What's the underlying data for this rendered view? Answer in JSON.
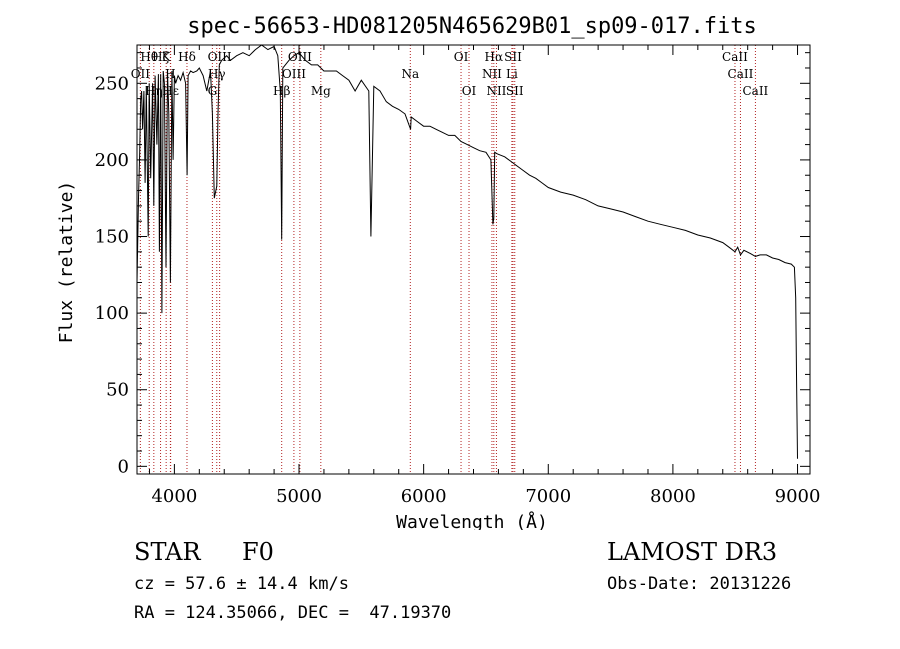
{
  "chart_data": {
    "type": "line",
    "title": "spec-56653-HD081205N465629B01_sp09-017.fits",
    "xlabel": "Wavelength (Å)",
    "ylabel": "Flux (relative)",
    "xlim": [
      3700,
      9100
    ],
    "ylim": [
      -5,
      275
    ],
    "xticks": [
      4000,
      5000,
      6000,
      7000,
      8000,
      9000
    ],
    "xtick_labels": [
      "4000",
      "5000",
      "6000",
      "7000",
      "8000",
      "9000"
    ],
    "yticks": [
      0,
      50,
      100,
      150,
      200,
      250
    ],
    "ytick_labels": [
      "0",
      "50",
      "100",
      "150",
      "200",
      "250"
    ],
    "series": [
      {
        "name": "spectrum",
        "x": [
          3700,
          3712,
          3722,
          3730,
          3737,
          3745,
          3755,
          3765,
          3775,
          3790,
          3798,
          3810,
          3825,
          3835,
          3845,
          3860,
          3872,
          3880,
          3890,
          3900,
          3910,
          3920,
          3933,
          3945,
          3955,
          3968,
          3980,
          3990,
          4000,
          4010,
          4030,
          4050,
          4070,
          4090,
          4102,
          4110,
          4130,
          4150,
          4180,
          4200,
          4230,
          4260,
          4290,
          4305,
          4320,
          4340,
          4350,
          4360,
          4380,
          4420,
          4450,
          4500,
          4550,
          4600,
          4650,
          4700,
          4750,
          4800,
          4830,
          4850,
          4861,
          4870,
          4890,
          4920,
          4960,
          5000,
          5050,
          5100,
          5150,
          5200,
          5250,
          5300,
          5350,
          5400,
          5450,
          5500,
          5560,
          5577,
          5600,
          5650,
          5700,
          5750,
          5800,
          5850,
          5895,
          5900,
          5950,
          6000,
          6050,
          6100,
          6150,
          6200,
          6250,
          6300,
          6350,
          6400,
          6450,
          6500,
          6540,
          6556,
          6563,
          6570,
          6590,
          6620,
          6650,
          6700,
          6750,
          6800,
          6850,
          6900,
          6950,
          7000,
          7100,
          7200,
          7300,
          7400,
          7500,
          7600,
          7700,
          7800,
          7900,
          8000,
          8100,
          8200,
          8300,
          8400,
          8450,
          8498,
          8520,
          8542,
          8570,
          8620,
          8662,
          8700,
          8750,
          8800,
          8850,
          8900,
          8950,
          8975,
          8985,
          8992,
          9000
        ],
        "values": [
          120,
          175,
          205,
          240,
          245,
          220,
          245,
          185,
          248,
          150,
          250,
          188,
          250,
          170,
          255,
          210,
          256,
          140,
          256,
          100,
          258,
          250,
          130,
          258,
          230,
          120,
          258,
          200,
          255,
          250,
          255,
          252,
          257,
          250,
          190,
          255,
          258,
          257,
          258,
          260,
          255,
          245,
          258,
          230,
          175,
          183,
          230,
          262,
          265,
          268,
          265,
          268,
          270,
          268,
          272,
          275,
          272,
          274,
          268,
          245,
          148,
          260,
          262,
          265,
          268,
          270,
          265,
          262,
          262,
          258,
          258,
          258,
          255,
          252,
          245,
          252,
          245,
          150,
          248,
          245,
          238,
          235,
          233,
          230,
          220,
          228,
          225,
          222,
          222,
          220,
          218,
          216,
          216,
          212,
          210,
          208,
          206,
          205,
          200,
          158,
          162,
          205,
          204,
          203,
          202,
          199,
          196,
          193,
          190,
          188,
          185,
          182,
          179,
          177,
          174,
          170,
          168,
          166,
          163,
          160,
          158,
          156,
          154,
          151,
          149,
          146,
          143,
          140,
          143,
          138,
          141,
          139,
          137,
          138,
          138,
          136,
          135,
          133,
          132,
          130,
          110,
          60,
          5
        ]
      }
    ],
    "line_ids": [
      {
        "label": "Hθ",
        "x": 3798,
        "row": 1
      },
      {
        "label": "OII",
        "x": 3727,
        "row": 2
      },
      {
        "label": "Hη",
        "x": 3835,
        "row": 3
      },
      {
        "label": "Hζ",
        "x": 3889,
        "row": 1
      },
      {
        "label": "K",
        "x": 3934,
        "row": 1
      },
      {
        "label": "H",
        "x": 3968,
        "row": 2
      },
      {
        "label": "Hε",
        "x": 3970,
        "row": 3
      },
      {
        "label": "Hδ",
        "x": 4101,
        "row": 1
      },
      {
        "label": "G",
        "x": 4305,
        "row": 3
      },
      {
        "label": "OIII",
        "x": 4363,
        "row": 1
      },
      {
        "label": "Hγ",
        "x": 4340,
        "row": 2
      },
      {
        "label": "Hβ",
        "x": 4861,
        "row": 3
      },
      {
        "label": "OIII",
        "x": 4959,
        "row": 2
      },
      {
        "label": "OIII",
        "x": 5007,
        "row": 1
      },
      {
        "label": "Mg",
        "x": 5175,
        "row": 3
      },
      {
        "label": "Na",
        "x": 5893,
        "row": 2
      },
      {
        "label": "OI",
        "x": 6300,
        "row": 1
      },
      {
        "label": "OI",
        "x": 6364,
        "row": 3
      },
      {
        "label": "Hα",
        "x": 6563,
        "row": 1
      },
      {
        "label": "NII",
        "x": 6548,
        "row": 2
      },
      {
        "label": "NII",
        "x": 6584,
        "row": 3
      },
      {
        "label": "SII",
        "x": 6717,
        "row": 1
      },
      {
        "label": "Li",
        "x": 6708,
        "row": 2
      },
      {
        "label": "SII",
        "x": 6731,
        "row": 3
      },
      {
        "label": "CaII",
        "x": 8498,
        "row": 1
      },
      {
        "label": "CaII",
        "x": 8542,
        "row": 2
      },
      {
        "label": "CaII",
        "x": 8662,
        "row": 3
      }
    ]
  },
  "info": {
    "object_class": "STAR",
    "subclass": "F0",
    "survey": "LAMOST DR3",
    "redshift": "cz = 57.6 ± 14.4 km/s",
    "obs_date": "Obs-Date: 20131226",
    "coords": "RA = 124.35066, DEC =  47.19370"
  },
  "colors": {
    "axis": "#000000",
    "spectrum": "#000000",
    "line_marker": "#b22222",
    "background": "#ffffff"
  }
}
